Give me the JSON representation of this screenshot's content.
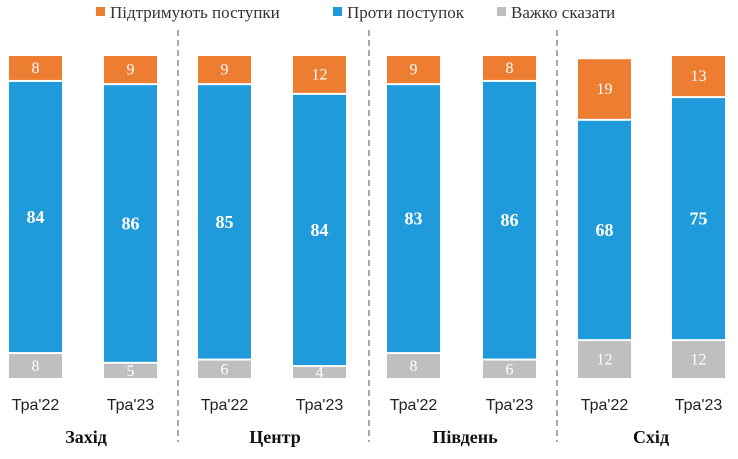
{
  "chart_data": {
    "type": "bar",
    "stacked": true,
    "percent_stacked": true,
    "legend_position": "top",
    "series": [
      {
        "name": "Підтримують поступки",
        "color": "#ED7D31"
      },
      {
        "name": "Проти поступок",
        "color": "#1F9ADA"
      },
      {
        "name": "Важко сказати",
        "color": "#BFBFBF"
      }
    ],
    "groups": [
      {
        "region": "Захід",
        "bars": [
          {
            "category": "Тра'22",
            "support": 8,
            "against": 84,
            "hard": 8
          },
          {
            "category": "Тра'23",
            "support": 9,
            "against": 86,
            "hard": 5
          }
        ]
      },
      {
        "region": "Центр",
        "bars": [
          {
            "category": "Тра'22",
            "support": 9,
            "against": 85,
            "hard": 6
          },
          {
            "category": "Тра'23",
            "support": 12,
            "against": 84,
            "hard": 4
          }
        ]
      },
      {
        "region": "Південь",
        "bars": [
          {
            "category": "Тра'22",
            "support": 9,
            "against": 83,
            "hard": 8
          },
          {
            "category": "Тра'23",
            "support": 8,
            "against": 86,
            "hard": 6
          }
        ]
      },
      {
        "region": "Схід",
        "bars": [
          {
            "category": "Тра'22",
            "support": 19,
            "against": 68,
            "hard": 12
          },
          {
            "category": "Тра'23",
            "support": 13,
            "against": 75,
            "hard": 12
          }
        ]
      }
    ]
  }
}
